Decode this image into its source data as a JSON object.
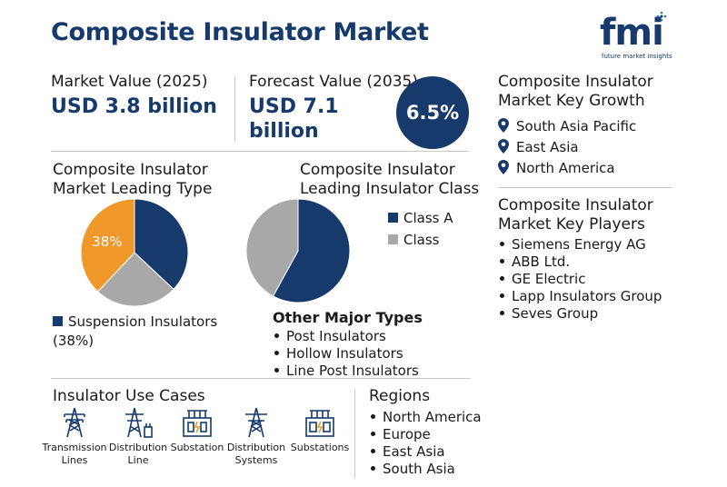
{
  "title": "Composite Insulator Market",
  "logo": {
    "text": "fmi",
    "tagline": "future market insights"
  },
  "market_value": {
    "label": "Market Value (2025)",
    "value": "USD 3.8 billion"
  },
  "forecast_value": {
    "label": "Forecast Value (2035)",
    "value_line1": "USD 7.1",
    "value_line2": "billion"
  },
  "cagr": "6.5%",
  "key_growth": {
    "title_line1": "Composite Insulator",
    "title_line2": "Market Key Growth",
    "regions": [
      "South Asia Pacific",
      "East Asia",
      "North America"
    ]
  },
  "leading_type": {
    "title_line1": "Composite Insulator",
    "title_line2": "Market Leading Type",
    "legend_line1": "Suspension Insulators",
    "legend_line2": "(38%)"
  },
  "leading_class": {
    "title_line1": "Composite Insulator",
    "title_line2": "Leading Insulator Class",
    "legend": [
      "Class A",
      "Class"
    ]
  },
  "other_types": {
    "title": "Other Major Types",
    "items": [
      "Post Insulators",
      "Hollow Insulators",
      "Line Post Insulators"
    ]
  },
  "key_players": {
    "title_line1": "Composite Insulator",
    "title_line2": "Market Key Players",
    "items": [
      "Siemens Energy AG",
      "ABB Ltd.",
      "GE Electric",
      "Lapp Insulators Group",
      "Seves Group"
    ]
  },
  "use_cases": {
    "title": "Insulator Use Cases",
    "items": [
      {
        "line1": "Transmission",
        "line2": "Lines",
        "icon": "transmission-tower-icon"
      },
      {
        "line1": "Distribution",
        "line2": "Line",
        "icon": "distribution-tower-icon"
      },
      {
        "line1": "Substation",
        "line2": "",
        "icon": "substation-icon"
      },
      {
        "line1": "Distribution",
        "line2": "Systems",
        "icon": "distribution-systems-icon"
      },
      {
        "line1": "Substations",
        "line2": "",
        "icon": "substations-icon"
      }
    ]
  },
  "regions": {
    "title": "Regions",
    "items": [
      "North America",
      "Europe",
      "East Asia",
      "South Asia"
    ]
  },
  "chart_data": [
    {
      "type": "pie",
      "slices": [
        {
          "value": 38,
          "color": "#f0982a",
          "label": "38%"
        },
        {
          "value": 37,
          "color": "#163a6b"
        },
        {
          "value": 25,
          "color": "#a8a8a8"
        }
      ]
    },
    {
      "type": "pie",
      "slices": [
        {
          "value": 58,
          "color": "#163a6b"
        },
        {
          "value": 42,
          "color": "#a8a8a8"
        }
      ]
    }
  ],
  "colors": {
    "navy": "#163a6b",
    "orange": "#f0982a",
    "gray": "#a8a8a8"
  }
}
